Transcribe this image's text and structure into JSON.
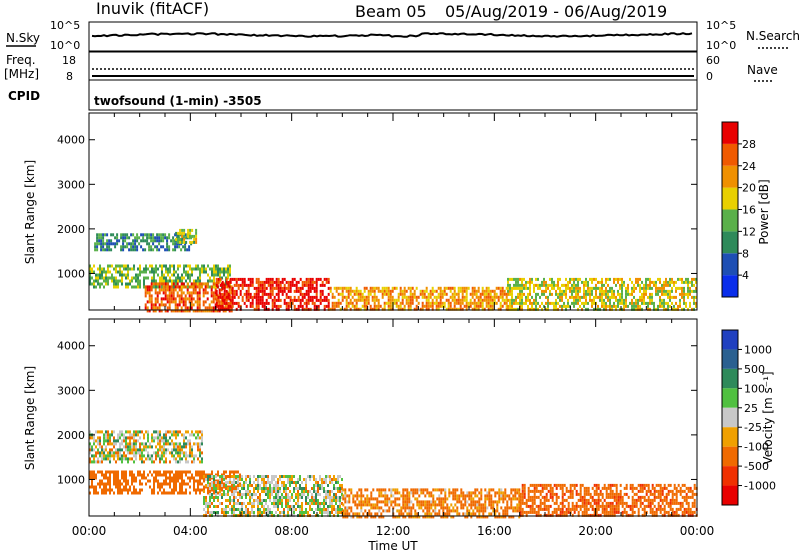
{
  "header": {
    "station": "Inuvik (fitACF)",
    "beam": "Beam 05",
    "date_range": "05/Aug/2019 - 06/Aug/2019",
    "cpid_label": "CPID",
    "cpid_text": "twofsound (1-min) -3505"
  },
  "noise_panel": {
    "left_label": "N.Sky",
    "right_label": "N.Search",
    "left_ticks": [
      "10^5",
      "10^0"
    ],
    "right_ticks": [
      "10^5",
      "10^0"
    ]
  },
  "freq_panel": {
    "left_label_1": "Freq.",
    "left_label_2": "[MHz]",
    "right_label": "Nave",
    "left_ticks": [
      "18",
      "8"
    ],
    "right_ticks": [
      "60",
      "0"
    ]
  },
  "colors": {
    "power": [
      "#0a2eea",
      "#1e4fb4",
      "#2e8a5a",
      "#5ab04a",
      "#e8d000",
      "#f09000",
      "#f05a00",
      "#e80000"
    ],
    "velocity": [
      "#2040c0",
      "#2a6090",
      "#2e8a5a",
      "#50c040",
      "#c8c8c8",
      "#f0a000",
      "#f06a00",
      "#f03000",
      "#e80000"
    ]
  },
  "chart_data": [
    {
      "type": "heatmap",
      "name": "power",
      "xlabel": "",
      "ylabel": "Slant Range [km]",
      "x_ticks": [
        "00:00",
        "04:00",
        "08:00",
        "12:00",
        "16:00",
        "20:00",
        "00:00"
      ],
      "xlim_hours": [
        0,
        24
      ],
      "ylim": [
        180,
        4600
      ],
      "y_ticks": [
        1000,
        2000,
        3000,
        4000
      ],
      "colorbar": {
        "label": "Power [dB]",
        "ticks": [
          4,
          8,
          12,
          16,
          20,
          24,
          28
        ],
        "range": [
          0,
          32
        ]
      },
      "regions": [
        {
          "t0": 0.0,
          "t1": 5.6,
          "r0": 700,
          "r1": 1200,
          "value": 14
        },
        {
          "t0": 0.2,
          "t1": 4.0,
          "r0": 1500,
          "r1": 1900,
          "value": 10
        },
        {
          "t0": 2.2,
          "t1": 5.6,
          "r0": 180,
          "r1": 800,
          "value": 26
        },
        {
          "t0": 5.0,
          "t1": 9.5,
          "r0": 180,
          "r1": 900,
          "value": 30
        },
        {
          "t0": 9.5,
          "t1": 16.5,
          "r0": 180,
          "r1": 700,
          "value": 22
        },
        {
          "t0": 16.5,
          "t1": 24.0,
          "r0": 180,
          "r1": 900,
          "value": 18
        },
        {
          "t0": 3.4,
          "t1": 4.2,
          "r0": 1700,
          "r1": 2000,
          "value": 16
        }
      ]
    },
    {
      "type": "heatmap",
      "name": "velocity",
      "xlabel": "Time UT",
      "ylabel": "Slant Range [km]",
      "x_ticks": [
        "00:00",
        "04:00",
        "08:00",
        "12:00",
        "16:00",
        "20:00",
        "00:00"
      ],
      "xlim_hours": [
        0,
        24
      ],
      "ylim": [
        180,
        4600
      ],
      "y_ticks": [
        1000,
        2000,
        3000,
        4000
      ],
      "colorbar": {
        "label": "Velocity [m s⁻¹]",
        "ticks": [
          "1000",
          "500",
          "100",
          "25",
          "-25",
          "-100",
          "-500",
          "-1000"
        ]
      },
      "regions": [
        {
          "t0": 0.0,
          "t1": 4.5,
          "r0": 1400,
          "r1": 2100,
          "value": 0
        },
        {
          "t0": 0.0,
          "t1": 6.0,
          "r0": 700,
          "r1": 1200,
          "value": -200
        },
        {
          "t0": 4.5,
          "t1": 10.0,
          "r0": 180,
          "r1": 1100,
          "value": 0
        },
        {
          "t0": 10.0,
          "t1": 17.0,
          "r0": 180,
          "r1": 800,
          "value": -100
        },
        {
          "t0": 17.0,
          "t1": 24.0,
          "r0": 180,
          "r1": 900,
          "value": -250
        }
      ]
    }
  ]
}
